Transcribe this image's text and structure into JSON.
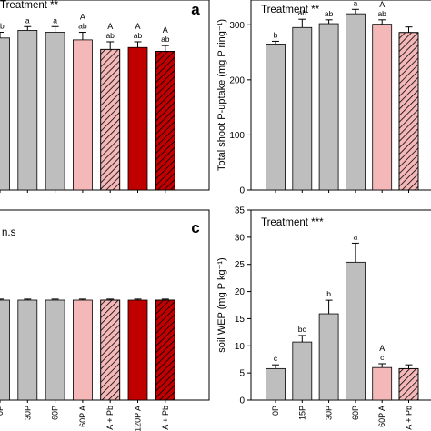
{
  "chart_data": [
    {
      "id": "panel-a",
      "type": "bar",
      "panel_label": "a",
      "annotation": "Treatment **",
      "xlabel": "",
      "ylabel": "",
      "ylim": [
        0,
        1.0
      ],
      "yticks": [],
      "grid": false,
      "legend": "none",
      "categories": [
        "",
        "30P",
        "60P",
        "60P A",
        "60P A + Pb",
        "120P A",
        "120P A + Pb"
      ],
      "values": [
        0.8,
        0.84,
        0.83,
        0.79,
        0.74,
        0.75,
        0.73
      ],
      "errors": [
        0.03,
        0.02,
        0.03,
        0.04,
        0.04,
        0.03,
        0.03
      ],
      "sig_upper": [
        "",
        "",
        "",
        "A",
        "A",
        "A",
        "A"
      ],
      "sig_lower": [
        "ab",
        "a",
        "a",
        "ab",
        "ab",
        "ab",
        "ab"
      ],
      "colors": [
        "#bebebe",
        "#bebebe",
        "#bebebe",
        "#f5b8b8",
        "#f5b8b8",
        "#c00000",
        "#c00000"
      ],
      "hatched": [
        false,
        false,
        false,
        false,
        true,
        false,
        true
      ]
    },
    {
      "id": "panel-b",
      "type": "bar",
      "annotation": "Treatment **",
      "xlabel": "",
      "ylabel": "Total shoot P-uptake (mg P ring⁻¹)",
      "ylim": [
        0,
        345
      ],
      "yticks": [
        0,
        100,
        200,
        300
      ],
      "grid": false,
      "legend": "none",
      "categories": [
        "0P",
        "15P",
        "30P",
        "60P",
        "60P A",
        "60P A + Pb"
      ],
      "values": [
        265,
        295,
        302,
        320,
        301,
        286
      ],
      "errors": [
        5,
        15,
        7,
        8,
        8,
        10
      ],
      "sig_upper": [
        "",
        "",
        "",
        "",
        "A",
        ""
      ],
      "sig_lower": [
        "b",
        "ab",
        "ab",
        "a",
        "ab",
        ""
      ],
      "colors": [
        "#bebebe",
        "#bebebe",
        "#bebebe",
        "#bebebe",
        "#f5b8b8",
        "#f5b8b8"
      ],
      "hatched": [
        false,
        false,
        false,
        false,
        false,
        true
      ]
    },
    {
      "id": "panel-c",
      "type": "bar",
      "panel_label": "c",
      "annotation": "n.s",
      "xlabel": "",
      "ylabel": "",
      "ylim": [
        0,
        1.9
      ],
      "yticks": [],
      "grid": false,
      "legend": "none",
      "categories": [
        "0P",
        "30P",
        "60P",
        "60P A",
        "60P A + Pb",
        "120P A",
        "120P A + Pb"
      ],
      "values": [
        1.0,
        1.0,
        1.0,
        1.0,
        1.0,
        1.0,
        1.0
      ],
      "errors": [
        0.01,
        0.01,
        0.01,
        0.01,
        0.01,
        0.01,
        0.01
      ],
      "sig_upper": [
        "",
        "",
        "",
        "",
        "",
        "",
        ""
      ],
      "sig_lower": [
        "",
        "",
        "",
        "",
        "",
        "",
        ""
      ],
      "colors": [
        "#bebebe",
        "#bebebe",
        "#bebebe",
        "#f5b8b8",
        "#f5b8b8",
        "#c00000",
        "#c00000"
      ],
      "hatched": [
        false,
        false,
        false,
        false,
        true,
        false,
        true
      ]
    },
    {
      "id": "panel-d",
      "type": "bar",
      "annotation": "Treatment ***",
      "xlabel": "",
      "ylabel": "soil WEP (mg P kg⁻¹)",
      "ylim": [
        0,
        35
      ],
      "yticks": [
        0,
        5,
        10,
        15,
        20,
        25,
        30,
        35
      ],
      "grid": false,
      "legend": "none",
      "categories": [
        "0P",
        "15P",
        "30P",
        "60P",
        "60P A",
        "60P A + Pb"
      ],
      "values": [
        5.8,
        10.7,
        15.9,
        25.4,
        6.0,
        5.8
      ],
      "errors": [
        0.7,
        1.2,
        2.5,
        3.5,
        0.7,
        0.7
      ],
      "sig_upper": [
        "",
        "",
        "",
        "",
        "A",
        ""
      ],
      "sig_lower": [
        "c",
        "bc",
        "b",
        "a",
        "c",
        ""
      ],
      "colors": [
        "#bebebe",
        "#bebebe",
        "#bebebe",
        "#bebebe",
        "#f5b8b8",
        "#f5b8b8"
      ],
      "hatched": [
        false,
        false,
        false,
        false,
        false,
        true
      ]
    }
  ]
}
